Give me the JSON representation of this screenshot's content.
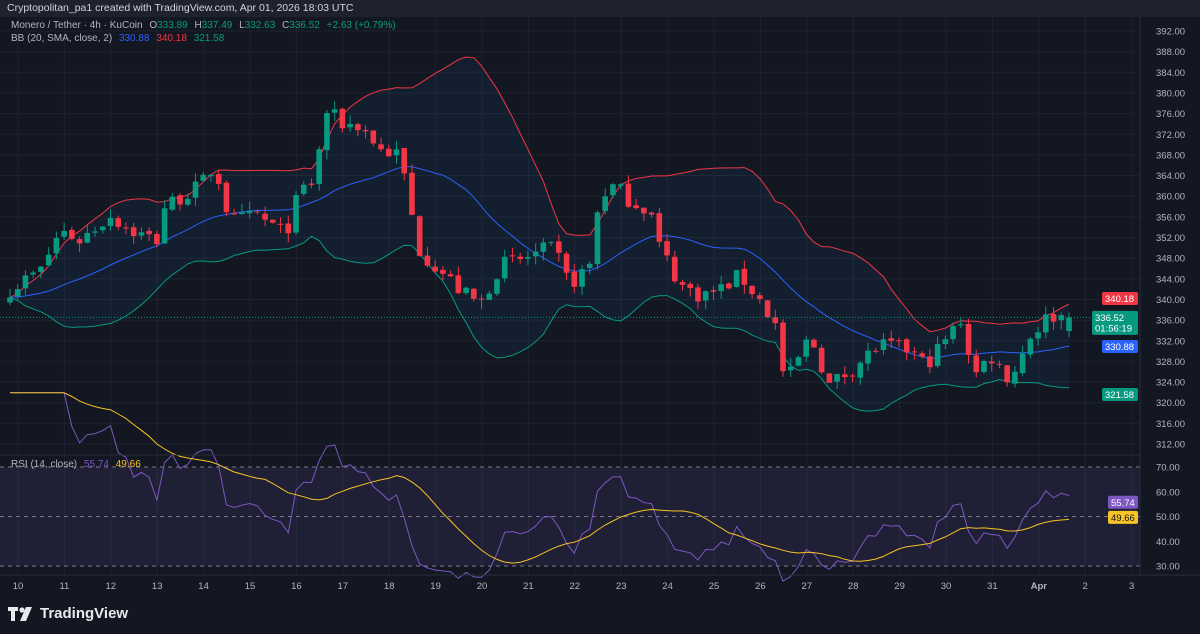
{
  "header": {
    "attribution": "Cryptopolitan_pa1 created with TradingView.com, Apr 01, 2026 18:03 UTC"
  },
  "legend": {
    "symbol": "Monero / Tether · 4h · KuCoin",
    "open_label": "O",
    "open": "333.89",
    "high_label": "H",
    "high": "337.49",
    "low_label": "L",
    "low": "332.63",
    "close_label": "C",
    "close": "336.52",
    "change": "+2.63 (+0.79%)",
    "bb_label": "BB (20, SMA, close, 2)",
    "bb_basis": "330.88",
    "bb_upper": "340.18",
    "bb_lower": "321.58",
    "rsi_label": "RSI (14, close)",
    "rsi_value": "55.74",
    "rsi_ma": "49.66"
  },
  "price_tags": {
    "upper": "340.18",
    "last": "336.52",
    "countdown": "01:56:19",
    "basis": "330.88",
    "lower": "321.58"
  },
  "rsi_tags": {
    "rsi": "55.74",
    "ma": "49.66"
  },
  "colors": {
    "up": "#089981",
    "down": "#F23645",
    "basis": "#2962FF",
    "upper": "#F23645",
    "lower": "#089981",
    "rsi": "#7E57C2",
    "rsi_ma": "#F7C325"
  },
  "footer": {
    "brand": "TradingView"
  },
  "chart_data": {
    "type": "candlestick",
    "title": "Monero / Tether · 4h · KuCoin",
    "candle_count": 138,
    "price_axis": {
      "min": 312,
      "max": 392,
      "ticks": [
        "392.00",
        "388.00",
        "384.00",
        "380.00",
        "376.00",
        "372.00",
        "368.00",
        "364.00",
        "360.00",
        "356.00",
        "352.00",
        "348.00",
        "344.00",
        "340.00",
        "336.00",
        "332.00",
        "328.00",
        "324.00",
        "320.00",
        "316.00",
        "312.00"
      ]
    },
    "rsi_axis": {
      "min": 30,
      "max": 70,
      "ticks": [
        "70.00",
        "60.00",
        "50.00",
        "40.00",
        "30.00"
      ],
      "bands": [
        70,
        50,
        30
      ]
    },
    "x_ticks": [
      "10",
      "11",
      "12",
      "13",
      "14",
      "15",
      "16",
      "17",
      "18",
      "19",
      "20",
      "21",
      "22",
      "23",
      "24",
      "25",
      "26",
      "27",
      "28",
      "29",
      "30",
      "31",
      "Apr",
      "2",
      "3"
    ],
    "close_keypoints": [
      [
        0,
        342
      ],
      [
        4,
        345.7
      ],
      [
        6.5,
        353.4
      ],
      [
        9,
        351.5
      ],
      [
        13,
        356.3
      ],
      [
        15.5,
        353.4
      ],
      [
        19,
        351.5
      ],
      [
        20,
        358
      ],
      [
        24.6,
        362
      ],
      [
        26.5,
        366
      ],
      [
        28.5,
        355
      ],
      [
        32,
        356.3
      ],
      [
        35.6,
        352.5
      ],
      [
        37.5,
        361
      ],
      [
        39.5,
        363
      ],
      [
        40.7,
        376.7
      ],
      [
        43.3,
        373.8
      ],
      [
        45.3,
        373.8
      ],
      [
        47.9,
        369
      ],
      [
        50.5,
        368
      ],
      [
        51.7,
        358
      ],
      [
        53,
        349.6
      ],
      [
        55.6,
        345.7
      ],
      [
        58.2,
        341.8
      ],
      [
        60.8,
        338.9
      ],
      [
        63.4,
        346.7
      ],
      [
        66,
        347.6
      ],
      [
        69.2,
        349.6
      ],
      [
        70.5,
        349.6
      ],
      [
        72.4,
        342.8
      ],
      [
        75,
        346.7
      ],
      [
        76.3,
        360.2
      ],
      [
        78.3,
        362
      ],
      [
        80.2,
        359.2
      ],
      [
        82.8,
        357.3
      ],
      [
        84,
        350.5
      ],
      [
        86.7,
        342.8
      ],
      [
        89.3,
        340.8
      ],
      [
        91.8,
        341.8
      ],
      [
        94.4,
        344.7
      ],
      [
        97,
        339.9
      ],
      [
        99,
        335
      ],
      [
        100.3,
        323.4
      ],
      [
        103.5,
        333
      ],
      [
        106,
        323.4
      ],
      [
        108.7,
        326.3
      ],
      [
        112.5,
        331.2
      ],
      [
        116.4,
        330.2
      ],
      [
        118.4,
        327.3
      ],
      [
        121,
        332.1
      ],
      [
        123,
        336
      ],
      [
        124.8,
        325.3
      ],
      [
        126.8,
        329.2
      ],
      [
        129.4,
        324.4
      ],
      [
        132,
        333
      ],
      [
        134.5,
        337
      ],
      [
        137,
        336.52
      ]
    ],
    "last_candle": {
      "open": 333.89,
      "high": 337.49,
      "low": 332.63,
      "close": 336.52
    },
    "indicators": {
      "bb": {
        "length": 20,
        "mult": 2,
        "basis": 330.88,
        "upper": 340.18,
        "lower": 321.58
      },
      "rsi": {
        "length": 14,
        "value": 55.74,
        "ma": 49.66
      }
    }
  }
}
